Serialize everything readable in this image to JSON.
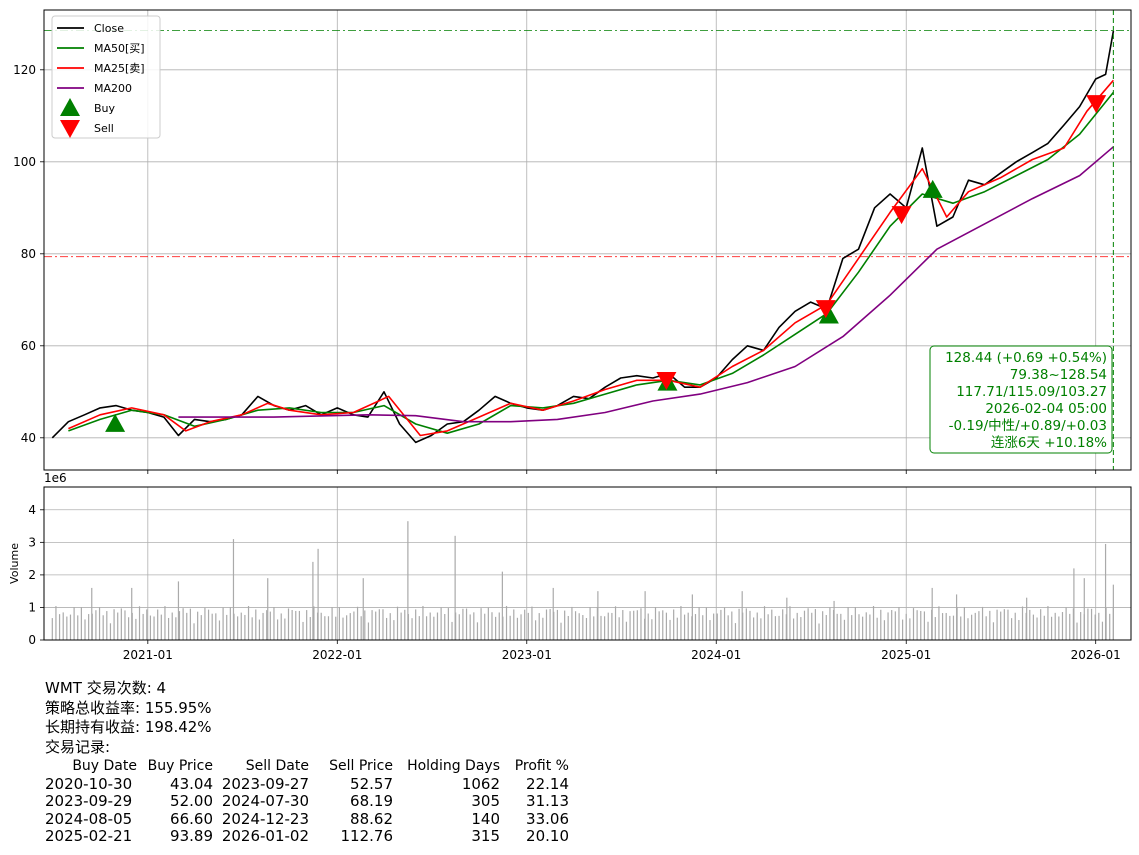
{
  "chart_data": [
    {
      "type": "line",
      "ticker": "WMT",
      "ylim": [
        33,
        133
      ],
      "yticks": [
        40,
        60,
        80,
        100,
        120
      ],
      "x_start": "2020-06-15",
      "x_end": "2026-03-10",
      "xticks": [
        "2021-01",
        "2022-01",
        "2023-01",
        "2024-01",
        "2025-01",
        "2026-01"
      ],
      "grid": true,
      "legend_position": "top-left",
      "legend": [
        {
          "label": "Close",
          "color": "#000000",
          "kind": "line"
        },
        {
          "label": "MA50[买]",
          "color": "#008000",
          "kind": "line"
        },
        {
          "label": "MA25[卖]",
          "color": "#ff0000",
          "kind": "line"
        },
        {
          "label": "MA200",
          "color": "#800080",
          "kind": "line"
        },
        {
          "label": "Buy",
          "color": "#008000",
          "kind": "up-triangle"
        },
        {
          "label": "Sell",
          "color": "#ff0000",
          "kind": "down-triangle"
        }
      ],
      "hlines": [
        {
          "y": 128.54,
          "color": "#008000",
          "style": "dashdot"
        },
        {
          "y": 79.38,
          "color": "#ff0000",
          "style": "dashdot"
        }
      ],
      "vline": {
        "x": "2026-02-04",
        "color": "#008000",
        "style": "dashed"
      },
      "series": [
        {
          "name": "Close",
          "color": "#000000",
          "points": [
            [
              "2020-07-01",
              40.0
            ],
            [
              "2020-08-01",
              43.5
            ],
            [
              "2020-09-01",
              45.0
            ],
            [
              "2020-10-01",
              46.5
            ],
            [
              "2020-11-01",
              47.0
            ],
            [
              "2020-12-01",
              46.0
            ],
            [
              "2021-01-01",
              45.5
            ],
            [
              "2021-02-01",
              44.5
            ],
            [
              "2021-03-01",
              40.5
            ],
            [
              "2021-04-01",
              44.0
            ],
            [
              "2021-05-01",
              43.5
            ],
            [
              "2021-06-01",
              44.0
            ],
            [
              "2021-07-01",
              45.0
            ],
            [
              "2021-08-01",
              49.0
            ],
            [
              "2021-09-01",
              47.0
            ],
            [
              "2021-10-01",
              46.0
            ],
            [
              "2021-11-01",
              47.0
            ],
            [
              "2021-12-01",
              45.0
            ],
            [
              "2022-01-01",
              46.5
            ],
            [
              "2022-02-01",
              45.0
            ],
            [
              "2022-03-01",
              44.5
            ],
            [
              "2022-04-01",
              50.0
            ],
            [
              "2022-05-01",
              43.0
            ],
            [
              "2022-06-01",
              39.0
            ],
            [
              "2022-07-01",
              40.5
            ],
            [
              "2022-08-01",
              43.0
            ],
            [
              "2022-09-01",
              43.5
            ],
            [
              "2022-10-01",
              46.0
            ],
            [
              "2022-11-01",
              49.0
            ],
            [
              "2022-12-01",
              47.5
            ],
            [
              "2023-01-01",
              46.5
            ],
            [
              "2023-02-01",
              46.0
            ],
            [
              "2023-03-01",
              47.0
            ],
            [
              "2023-04-01",
              49.0
            ],
            [
              "2023-05-01",
              48.5
            ],
            [
              "2023-06-01",
              51.0
            ],
            [
              "2023-07-01",
              53.0
            ],
            [
              "2023-08-01",
              53.5
            ],
            [
              "2023-09-01",
              53.0
            ],
            [
              "2023-10-01",
              54.0
            ],
            [
              "2023-11-01",
              51.0
            ],
            [
              "2023-12-01",
              51.0
            ],
            [
              "2024-01-01",
              53.0
            ],
            [
              "2024-02-01",
              57.0
            ],
            [
              "2024-03-01",
              60.0
            ],
            [
              "2024-04-01",
              59.0
            ],
            [
              "2024-05-01",
              64.0
            ],
            [
              "2024-06-01",
              67.5
            ],
            [
              "2024-07-01",
              69.5
            ],
            [
              "2024-08-01",
              68.0
            ],
            [
              "2024-09-01",
              79.0
            ],
            [
              "2024-10-01",
              81.0
            ],
            [
              "2024-11-01",
              90.0
            ],
            [
              "2024-12-01",
              93.0
            ],
            [
              "2025-01-01",
              90.0
            ],
            [
              "2025-02-01",
              103.0
            ],
            [
              "2025-03-01",
              86.0
            ],
            [
              "2025-04-01",
              88.0
            ],
            [
              "2025-05-01",
              96.0
            ],
            [
              "2025-06-01",
              95.0
            ],
            [
              "2025-07-01",
              97.5
            ],
            [
              "2025-08-01",
              100.0
            ],
            [
              "2025-09-01",
              102.0
            ],
            [
              "2025-10-01",
              104.0
            ],
            [
              "2025-11-01",
              108.0
            ],
            [
              "2025-12-01",
              112.0
            ],
            [
              "2026-01-01",
              118.0
            ],
            [
              "2026-01-20",
              119.0
            ],
            [
              "2026-02-04",
              128.44
            ]
          ]
        },
        {
          "name": "MA50[买]",
          "color": "#008000",
          "points": [
            [
              "2020-08-01",
              41.5
            ],
            [
              "2020-10-01",
              44.0
            ],
            [
              "2020-12-01",
              46.0
            ],
            [
              "2021-02-01",
              45.0
            ],
            [
              "2021-04-01",
              42.5
            ],
            [
              "2021-06-01",
              44.0
            ],
            [
              "2021-08-01",
              46.0
            ],
            [
              "2021-10-01",
              46.5
            ],
            [
              "2021-12-01",
              45.5
            ],
            [
              "2022-02-01",
              45.5
            ],
            [
              "2022-04-01",
              47.0
            ],
            [
              "2022-06-01",
              43.0
            ],
            [
              "2022-08-01",
              41.0
            ],
            [
              "2022-10-01",
              43.0
            ],
            [
              "2022-12-01",
              47.0
            ],
            [
              "2023-02-01",
              46.5
            ],
            [
              "2023-04-01",
              47.5
            ],
            [
              "2023-06-01",
              49.5
            ],
            [
              "2023-08-01",
              51.5
            ],
            [
              "2023-10-01",
              52.5
            ],
            [
              "2023-12-01",
              51.5
            ],
            [
              "2024-02-01",
              54.0
            ],
            [
              "2024-04-01",
              58.0
            ],
            [
              "2024-06-01",
              62.5
            ],
            [
              "2024-08-01",
              67.0
            ],
            [
              "2024-10-01",
              76.0
            ],
            [
              "2024-12-01",
              86.0
            ],
            [
              "2025-02-01",
              93.0
            ],
            [
              "2025-04-01",
              91.0
            ],
            [
              "2025-06-01",
              93.5
            ],
            [
              "2025-08-01",
              97.0
            ],
            [
              "2025-10-01",
              100.5
            ],
            [
              "2025-12-01",
              106.0
            ],
            [
              "2026-02-04",
              115.09
            ]
          ]
        },
        {
          "name": "MA25[卖]",
          "color": "#ff0000",
          "points": [
            [
              "2020-08-01",
              42.0
            ],
            [
              "2020-10-01",
              45.0
            ],
            [
              "2020-12-01",
              46.5
            ],
            [
              "2021-02-01",
              45.0
            ],
            [
              "2021-03-15",
              41.5
            ],
            [
              "2021-05-01",
              43.5
            ],
            [
              "2021-07-01",
              45.0
            ],
            [
              "2021-08-20",
              47.5
            ],
            [
              "2021-10-01",
              46.0
            ],
            [
              "2021-12-01",
              45.0
            ],
            [
              "2022-02-01",
              45.5
            ],
            [
              "2022-04-10",
              49.0
            ],
            [
              "2022-06-10",
              40.5
            ],
            [
              "2022-08-01",
              41.5
            ],
            [
              "2022-10-01",
              44.5
            ],
            [
              "2022-12-01",
              47.5
            ],
            [
              "2023-02-01",
              46.0
            ],
            [
              "2023-04-01",
              48.0
            ],
            [
              "2023-06-01",
              50.5
            ],
            [
              "2023-08-01",
              52.5
            ],
            [
              "2023-10-01",
              52.5
            ],
            [
              "2023-12-01",
              51.0
            ],
            [
              "2024-02-01",
              55.5
            ],
            [
              "2024-04-01",
              59.0
            ],
            [
              "2024-06-01",
              65.0
            ],
            [
              "2024-08-01",
              69.0
            ],
            [
              "2024-10-01",
              79.0
            ],
            [
              "2024-12-01",
              89.0
            ],
            [
              "2025-02-01",
              98.5
            ],
            [
              "2025-03-20",
              88.0
            ],
            [
              "2025-05-01",
              93.5
            ],
            [
              "2025-07-01",
              96.5
            ],
            [
              "2025-09-01",
              100.5
            ],
            [
              "2025-11-01",
              103.0
            ],
            [
              "2025-12-15",
              111.0
            ],
            [
              "2026-02-04",
              117.71
            ]
          ]
        },
        {
          "name": "MA200",
          "color": "#800080",
          "points": [
            [
              "2021-03-01",
              44.5
            ],
            [
              "2021-09-01",
              44.5
            ],
            [
              "2022-03-01",
              45.0
            ],
            [
              "2022-06-01",
              44.8
            ],
            [
              "2022-09-01",
              43.5
            ],
            [
              "2022-12-01",
              43.5
            ],
            [
              "2023-03-01",
              44.0
            ],
            [
              "2023-06-01",
              45.5
            ],
            [
              "2023-09-01",
              48.0
            ],
            [
              "2023-12-01",
              49.5
            ],
            [
              "2024-03-01",
              52.0
            ],
            [
              "2024-06-01",
              55.5
            ],
            [
              "2024-09-01",
              62.0
            ],
            [
              "2024-12-01",
              71.0
            ],
            [
              "2025-03-01",
              81.0
            ],
            [
              "2025-06-01",
              86.5
            ],
            [
              "2025-09-01",
              92.0
            ],
            [
              "2025-12-01",
              97.0
            ],
            [
              "2026-02-04",
              103.27
            ]
          ]
        }
      ],
      "buy_markers": [
        {
          "date": "2020-10-30",
          "price": 43.04
        },
        {
          "date": "2023-09-29",
          "price": 52.0
        },
        {
          "date": "2024-08-05",
          "price": 66.6
        },
        {
          "date": "2025-02-21",
          "price": 93.89
        }
      ],
      "sell_markers": [
        {
          "date": "2023-09-27",
          "price": 52.57
        },
        {
          "date": "2024-07-30",
          "price": 68.19
        },
        {
          "date": "2024-12-23",
          "price": 88.62
        },
        {
          "date": "2026-01-02",
          "price": 112.76
        }
      ],
      "info_box": [
        "128.44 (+0.69 +0.54%)",
        "79.38~128.54",
        "117.71/115.09/103.27",
        "2026-02-04 05:00",
        "-0.19/中性/+0.89/+0.03",
        "连涨6天 +10.18%"
      ]
    },
    {
      "type": "bar",
      "ylabel": "Volume",
      "scale_label": "1e6",
      "ylim": [
        0,
        4.7
      ],
      "yticks": [
        0,
        1,
        2,
        3,
        4
      ],
      "color": "#aaaaaa",
      "spikes": [
        [
          "2020-09-15",
          1.6
        ],
        [
          "2020-12-01",
          1.6
        ],
        [
          "2021-03-01",
          1.8
        ],
        [
          "2021-06-15",
          3.1
        ],
        [
          "2021-08-20",
          1.9
        ],
        [
          "2021-11-15",
          2.4
        ],
        [
          "2021-11-25",
          2.8
        ],
        [
          "2022-02-20",
          1.9
        ],
        [
          "2022-05-17",
          3.65
        ],
        [
          "2022-08-16",
          3.2
        ],
        [
          "2022-11-15",
          2.1
        ],
        [
          "2023-02-21",
          1.6
        ],
        [
          "2023-05-18",
          1.5
        ],
        [
          "2023-08-17",
          1.5
        ],
        [
          "2023-11-16",
          1.4
        ],
        [
          "2024-02-20",
          1.5
        ],
        [
          "2024-05-16",
          1.3
        ],
        [
          "2024-08-15",
          1.2
        ],
        [
          "2025-02-20",
          1.6
        ],
        [
          "2025-04-08",
          1.4
        ],
        [
          "2025-08-21",
          1.3
        ],
        [
          "2025-11-20",
          2.2
        ],
        [
          "2025-12-10",
          1.9
        ],
        [
          "2026-01-20",
          2.95
        ],
        [
          "2026-02-04",
          1.7
        ]
      ]
    }
  ],
  "summary": {
    "trades_line": "WMT 交易次数: 4",
    "strategy_line": "策略总收益率: 155.95%",
    "hold_line": "长期持有收益: 198.42%",
    "records_label": "交易记录:"
  },
  "trades": {
    "headers": [
      "Buy Date",
      "Buy Price",
      "Sell Date",
      "Sell Price",
      "Holding Days",
      "Profit %"
    ],
    "rows": [
      [
        "2020-10-30",
        "43.04",
        "2023-09-27",
        "52.57",
        "1062",
        "22.14"
      ],
      [
        "2023-09-29",
        "52.00",
        "2024-07-30",
        "68.19",
        "305",
        "31.13"
      ],
      [
        "2024-08-05",
        "66.60",
        "2024-12-23",
        "88.62",
        "140",
        "33.06"
      ],
      [
        "2025-02-21",
        "93.89",
        "2026-01-02",
        "112.76",
        "315",
        "20.10"
      ]
    ]
  }
}
